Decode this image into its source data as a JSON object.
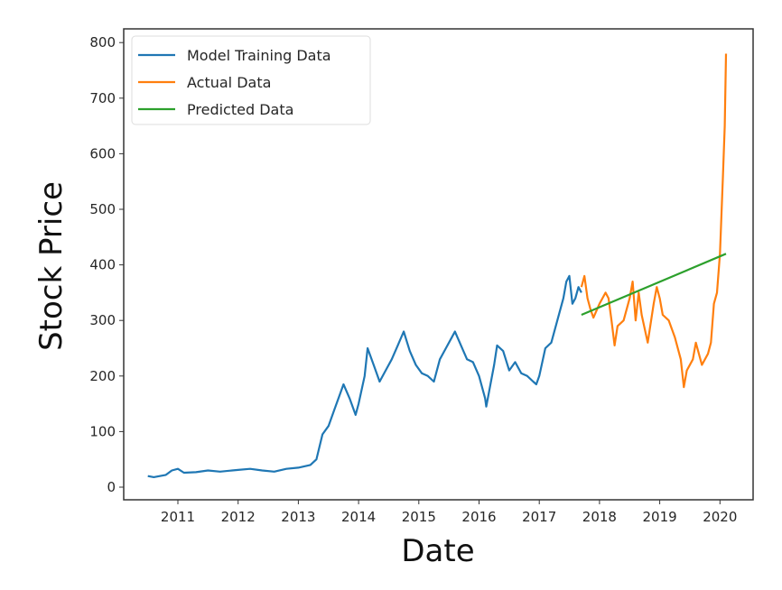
{
  "chart_data": {
    "type": "line",
    "title": "",
    "xlabel": "Date",
    "ylabel": "Stock Price",
    "xlim": [
      2010.3,
      2020.55
    ],
    "ylim": [
      -25,
      825
    ],
    "xticks": [
      "2011",
      "2012",
      "2013",
      "2014",
      "2015",
      "2016",
      "2017",
      "2018",
      "2019",
      "2020"
    ],
    "yticks": [
      "0",
      "100",
      "200",
      "300",
      "400",
      "500",
      "600",
      "700",
      "800"
    ],
    "legend_position": "top-left",
    "series": [
      {
        "name": "Model Training Data",
        "color": "#1f77b4",
        "x": [
          2010.5,
          2010.6,
          2010.8,
          2010.9,
          2011.0,
          2011.1,
          2011.3,
          2011.5,
          2011.7,
          2011.9,
          2012.0,
          2012.2,
          2012.4,
          2012.6,
          2012.8,
          2013.0,
          2013.2,
          2013.3,
          2013.4,
          2013.5,
          2013.6,
          2013.7,
          2013.75,
          2013.85,
          2013.95,
          2014.0,
          2014.1,
          2014.15,
          2014.25,
          2014.35,
          2014.45,
          2014.55,
          2014.65,
          2014.75,
          2014.85,
          2014.95,
          2015.05,
          2015.15,
          2015.25,
          2015.35,
          2015.45,
          2015.55,
          2015.6,
          2015.7,
          2015.8,
          2015.9,
          2016.0,
          2016.1,
          2016.12,
          2016.25,
          2016.3,
          2016.4,
          2016.5,
          2016.6,
          2016.7,
          2016.8,
          2016.9,
          2016.95,
          2017.0,
          2017.1,
          2017.2,
          2017.3,
          2017.4,
          2017.45,
          2017.5,
          2017.55,
          2017.6,
          2017.65,
          2017.7
        ],
        "y": [
          20,
          18,
          22,
          30,
          33,
          26,
          27,
          30,
          28,
          30,
          31,
          33,
          30,
          28,
          33,
          35,
          40,
          50,
          95,
          110,
          140,
          170,
          185,
          160,
          130,
          150,
          200,
          250,
          220,
          190,
          210,
          230,
          255,
          280,
          245,
          220,
          205,
          200,
          190,
          230,
          250,
          270,
          280,
          255,
          230,
          225,
          200,
          160,
          145,
          220,
          255,
          245,
          210,
          225,
          205,
          200,
          190,
          185,
          200,
          250,
          260,
          300,
          340,
          370,
          380,
          330,
          340,
          360,
          350
        ]
      },
      {
        "name": "Actual Data",
        "color": "#ff7f0e",
        "x": [
          2017.7,
          2017.75,
          2017.8,
          2017.85,
          2017.9,
          2018.0,
          2018.1,
          2018.15,
          2018.2,
          2018.25,
          2018.3,
          2018.4,
          2018.5,
          2018.55,
          2018.6,
          2018.65,
          2018.7,
          2018.8,
          2018.9,
          2018.95,
          2019.0,
          2019.05,
          2019.15,
          2019.25,
          2019.35,
          2019.4,
          2019.45,
          2019.55,
          2019.6,
          2019.7,
          2019.8,
          2019.85,
          2019.9,
          2019.95,
          2020.0,
          2020.05,
          2020.08,
          2020.1
        ],
        "y": [
          360,
          380,
          340,
          320,
          305,
          330,
          350,
          340,
          300,
          255,
          290,
          300,
          340,
          370,
          300,
          350,
          310,
          260,
          330,
          360,
          340,
          310,
          300,
          270,
          230,
          180,
          210,
          230,
          260,
          220,
          240,
          260,
          330,
          350,
          420,
          560,
          650,
          780
        ]
      },
      {
        "name": "Predicted Data",
        "color": "#2ca02c",
        "x": [
          2017.7,
          2020.1
        ],
        "y": [
          310,
          420
        ]
      }
    ]
  }
}
